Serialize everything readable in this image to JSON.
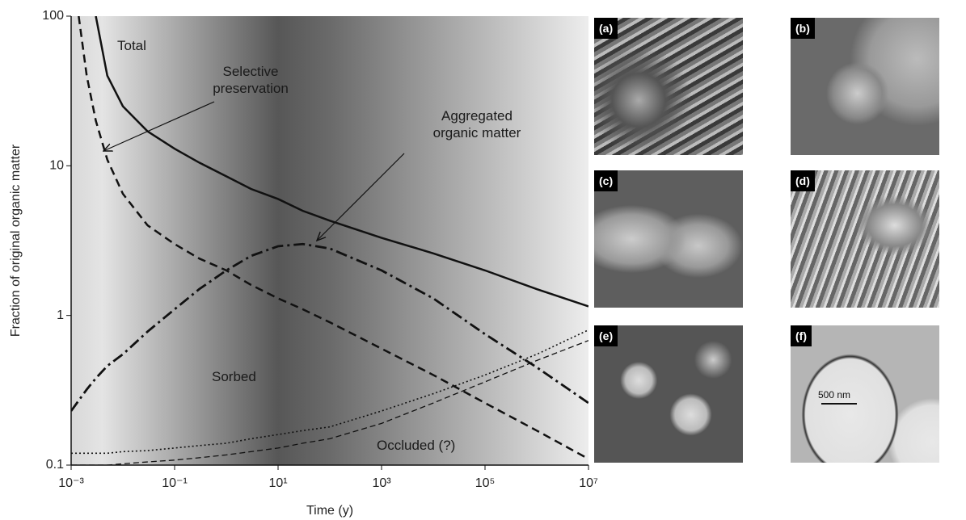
{
  "chart_data": {
    "type": "line",
    "xlabel": "Time (y)",
    "ylabel": "Fraction of original organic matter",
    "xscale": "log",
    "yscale": "log",
    "x": [
      0.001,
      0.0014,
      0.002,
      0.003,
      0.005,
      0.01,
      0.03,
      0.1,
      0.3,
      1,
      3,
      10,
      30,
      100,
      1000,
      10000,
      100000,
      1000000,
      10000000
    ],
    "series": [
      {
        "name": "Total",
        "color": "#111111",
        "style": "solid",
        "values": [
          null,
          null,
          null,
          100,
          40,
          25,
          17,
          13,
          10.5,
          8.5,
          7,
          6,
          5,
          4.3,
          3.3,
          2.6,
          2,
          1.5,
          1.15
        ]
      },
      {
        "name": "Selective preservation",
        "color": "#111111",
        "style": "dashed",
        "values": [
          null,
          100,
          40,
          20,
          11,
          6.5,
          4,
          3,
          2.4,
          2,
          1.6,
          1.3,
          1.1,
          0.9,
          0.6,
          0.4,
          0.26,
          0.17,
          0.11
        ]
      },
      {
        "name": "Aggregated organic matter",
        "color": "#111111",
        "style": "dash-dot",
        "values": [
          0.23,
          0.27,
          0.32,
          0.38,
          0.46,
          0.55,
          0.78,
          1.1,
          1.5,
          2,
          2.5,
          2.9,
          3,
          2.8,
          2,
          1.3,
          0.75,
          0.45,
          0.26
        ]
      },
      {
        "name": "Sorbed",
        "color": "#111111",
        "style": "dotted",
        "values": [
          0.12,
          0.12,
          0.12,
          0.12,
          0.12,
          0.123,
          0.125,
          0.13,
          0.135,
          0.14,
          0.15,
          0.16,
          0.17,
          0.18,
          0.23,
          0.3,
          0.4,
          0.55,
          0.8
        ]
      },
      {
        "name": "Occluded (?)",
        "color": "#111111",
        "style": "thin-dashed",
        "values": [
          0.1,
          0.1,
          0.1,
          0.1,
          0.1,
          0.102,
          0.105,
          0.108,
          0.112,
          0.117,
          0.123,
          0.13,
          0.14,
          0.15,
          0.19,
          0.26,
          0.36,
          0.5,
          0.68
        ]
      }
    ],
    "xlim": [
      0.001,
      10000000
    ],
    "xticks": [
      {
        "value": 0.001,
        "label": "10⁻³"
      },
      {
        "value": 0.1,
        "label": "10⁻¹"
      },
      {
        "value": 10,
        "label": "10¹"
      },
      {
        "value": 1000,
        "label": "10³"
      },
      {
        "value": 100000,
        "label": "10⁵"
      },
      {
        "value": 10000000,
        "label": "10⁷"
      }
    ],
    "ylim": [
      0.1,
      100
    ],
    "yticks": [
      0.1,
      1,
      10,
      100
    ]
  },
  "micrographs": {
    "panels": [
      "(a)",
      "(b)",
      "(c)",
      "(d)",
      "(e)",
      "(f)"
    ],
    "scale_bar": "500 nm"
  }
}
